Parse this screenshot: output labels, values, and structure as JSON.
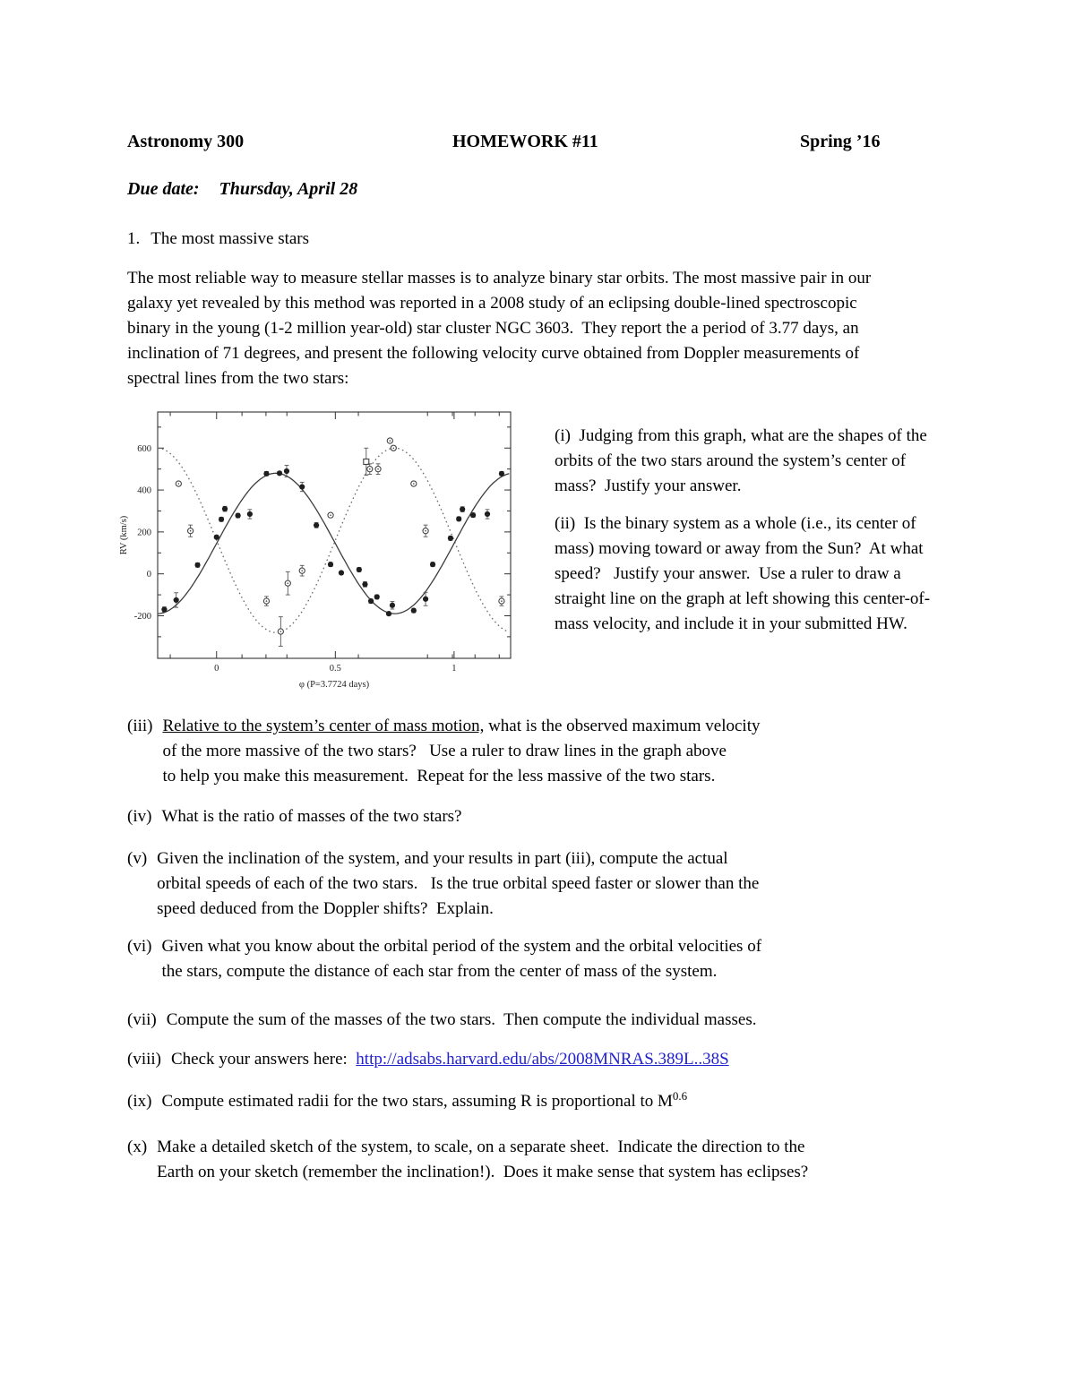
{
  "page": {
    "bg": "#ffffff",
    "text_color": "#000000",
    "link_color": "#2222cc"
  },
  "header": {
    "course": "Astronomy 300",
    "title": "HOMEWORK #11",
    "term": "Spring ’16"
  },
  "due": {
    "label": "Due date:",
    "value": "Thursday, April 28"
  },
  "section1": {
    "number": "1.",
    "title": "The most massive stars"
  },
  "intro": "The most reliable way to measure stellar masses is to analyze binary star orbits. The most massive pair in our\ngalaxy yet revealed by this method was reported in a 2008 study of an eclipsing double-lined spectroscopic\nbinary in the young (1-2 million year-old) star cluster NGC 3603.  They report the a period of 3.77 days, an\ninclination of 71 degrees, and present the following velocity curve obtained from Doppler measurements of\nspectral lines from the two stars:",
  "side": {
    "i": "(i)  Judging from this graph, what are the shapes of the\norbits of the two stars around the system’s center of\nmass?  Justify your answer.",
    "ii": "(ii)  Is the binary system as a whole (i.e., its center of\nmass) moving toward or away from the Sun?  At what\nspeed?   Justify your answer.  Use a ruler to draw a\nstraight line on the graph at left showing this center-of-\nmass velocity, and include it in your submitted HW."
  },
  "questions": {
    "iii": {
      "label": "(iii)",
      "underlined": "Relative to the system’s center of mass motion,",
      "rest": " what is the observed maximum velocity\nof the more massive of the two stars?   Use a ruler to draw lines in the graph above\nto help you make this measurement.  Repeat for the less massive of the two stars."
    },
    "iv": {
      "label": "(iv)",
      "text": "What is the ratio of masses of the two stars?"
    },
    "v": {
      "label": "(v)",
      "text": "Given the inclination of the system, and your results in part (iii), compute the actual\norbital speeds of each of the two stars.   Is the true orbital speed faster or slower than the\nspeed deduced from the Doppler shifts?  Explain."
    },
    "vi": {
      "label": "(vi)",
      "text": "Given what you know about the orbital period of the system and the orbital velocities of\nthe stars, compute the distance of each star from the center of mass of the system."
    },
    "vii": {
      "label": "(vii)",
      "text": "Compute the sum of the masses of the two stars.  Then compute the individual masses."
    },
    "viii": {
      "label": "(viii)",
      "text": "Check your answers here:  ",
      "link": "http://adsabs.harvard.edu/abs/2008MNRAS.389L..38S"
    },
    "ix": {
      "label": "(ix)",
      "text": "Compute estimated radii for the two stars, assuming R is proportional to M",
      "sup": "0.6"
    },
    "x": {
      "label": "(x)",
      "text": "Make a detailed sketch of the system, to scale, on a separate sheet.  Indicate the direction to the\nEarth on your sketch (remember the inclination!).  Does it make sense that system has eclipses?"
    }
  },
  "chart_data": {
    "type": "scatter",
    "title": "",
    "xlabel": "φ (P=3.7724 days)",
    "ylabel": "RV (km/s)",
    "xlim": [
      -0.248,
      1.238
    ],
    "ylim": [
      -403,
      772
    ],
    "grid": false,
    "xticks_major": [
      0,
      0.5,
      1
    ],
    "xtick_labels": [
      "0",
      "0.5",
      "1"
    ],
    "phase_marks": [
      -0.195,
      0.107,
      0.208,
      0.296,
      0.597,
      0.888,
      0.993,
      1.088,
      1.19
    ],
    "yticks_major": [
      -200,
      0,
      200,
      400,
      600
    ],
    "yticks_minor": [
      -300,
      -100,
      100,
      300,
      500,
      700
    ],
    "series": [
      {
        "name": "star A (open circles, dotted curve)",
        "marker": "open",
        "style": "dotted",
        "curve_model": "v = mean + amplitude * sin(2*pi*phase)",
        "mean": 160,
        "amplitude": -440,
        "points": [
          [
            -0.16,
            430,
            10
          ],
          [
            -0.11,
            205,
            28
          ],
          [
            0.21,
            -130,
            22
          ],
          [
            0.27,
            -275,
            70
          ],
          [
            0.3,
            -45,
            55
          ],
          [
            0.36,
            15,
            25
          ],
          [
            0.48,
            280,
            10
          ],
          [
            0.63,
            535,
            65,
            "sq"
          ],
          [
            0.645,
            500,
            25
          ],
          [
            0.68,
            500,
            25
          ],
          [
            0.73,
            635,
            10
          ],
          [
            0.745,
            600,
            10
          ],
          [
            0.83,
            430,
            10
          ],
          [
            0.88,
            205,
            28
          ],
          [
            1.2,
            -130,
            22
          ]
        ]
      },
      {
        "name": "star B (filled circles, solid curve)",
        "marker": "filled",
        "style": "solid",
        "curve_model": "v = mean + amplitude * sin(2*pi*phase)",
        "mean": 145,
        "amplitude": 335,
        "points": [
          [
            -0.22,
            -170,
            12
          ],
          [
            -0.17,
            -125,
            35
          ],
          [
            -0.08,
            42,
            10
          ],
          [
            0.0,
            175,
            8
          ],
          [
            0.02,
            260,
            10
          ],
          [
            0.035,
            310,
            12
          ],
          [
            0.09,
            278,
            10
          ],
          [
            0.14,
            285,
            22
          ],
          [
            0.21,
            478,
            10
          ],
          [
            0.265,
            480,
            8
          ],
          [
            0.295,
            490,
            28
          ],
          [
            0.36,
            415,
            22
          ],
          [
            0.42,
            232,
            12
          ],
          [
            0.48,
            45,
            10
          ],
          [
            0.525,
            5,
            8
          ],
          [
            0.6,
            20,
            10
          ],
          [
            0.625,
            -50,
            12
          ],
          [
            0.65,
            -130,
            10
          ],
          [
            0.675,
            -110,
            10
          ],
          [
            0.725,
            -190,
            8
          ],
          [
            0.74,
            -150,
            18
          ],
          [
            0.83,
            -175,
            10
          ],
          [
            0.88,
            -120,
            32
          ],
          [
            0.91,
            45,
            10
          ],
          [
            0.985,
            170,
            10
          ],
          [
            1.02,
            262,
            10
          ],
          [
            1.035,
            308,
            12
          ],
          [
            1.08,
            280,
            10
          ],
          [
            1.14,
            285,
            22
          ],
          [
            1.2,
            478,
            10
          ]
        ]
      }
    ]
  }
}
